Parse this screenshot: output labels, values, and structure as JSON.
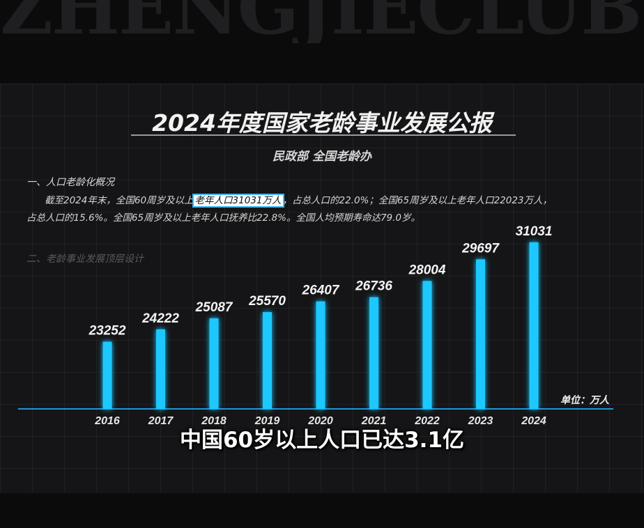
{
  "watermark": "ZHENGJIECLUB",
  "report": {
    "title": "2024年度国家老龄事业发展公报",
    "subtitle": "民政部 全国老龄办",
    "section1": "一、人口老龄化概况",
    "para_line1_pre": "截至2024年末，全国60周岁及以上",
    "para_highlight": "老年人口31031万人",
    "para_line1_post": "，占总人口的22.0%；全国65周岁及以上老年人口22023万人，",
    "para_line2": "占总人口的15.6%。全国65周岁及以上老年人口抚养比22.8%。全国人均预期寿命达79.0岁。",
    "section2": "二、老龄事业发展顶层设计"
  },
  "colors": {
    "bar": "#1ec8ff",
    "bar_glow": "#0a6fd6",
    "highlight_border": "#38b6ff"
  },
  "chart_data": {
    "type": "bar",
    "categories": [
      "2016",
      "2017",
      "2018",
      "2019",
      "2020",
      "2021",
      "2022",
      "2023",
      "2024"
    ],
    "values": [
      23252,
      24222,
      25087,
      25570,
      26407,
      26736,
      28004,
      29697,
      31031
    ],
    "unit_label": "单位：万人",
    "ylim": [
      18000,
      32000
    ],
    "grid": false
  },
  "caption": "中国60岁以上人口已达3.1亿"
}
